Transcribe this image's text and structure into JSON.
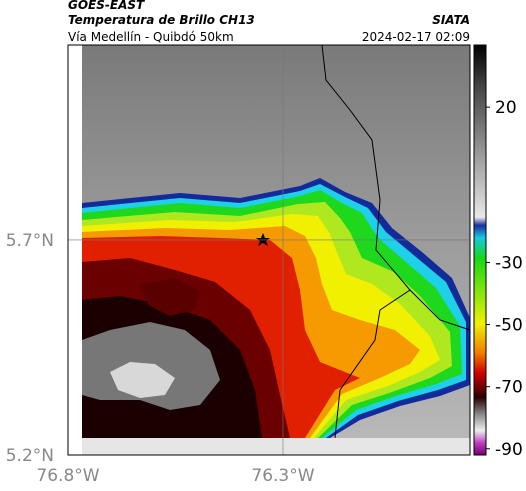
{
  "header": {
    "product": "GOES-EAST",
    "title": "Temperatura de Brillo CH13",
    "source": "SIATA",
    "region": "Vía Medellín - Quibdó 50km",
    "datetime": "2024-02-17 02:09"
  },
  "map": {
    "xlim": [
      -76.8,
      -75.865
    ],
    "ylim": [
      5.2,
      6.153
    ],
    "xticks": [
      {
        "value": -76.8,
        "label": "76.8°W"
      },
      {
        "value": -76.3,
        "label": "76.3°W"
      }
    ],
    "yticks": [
      {
        "value": 5.2,
        "label": "5.2°N"
      },
      {
        "value": 5.7,
        "label": "5.7°N"
      }
    ],
    "grid": true
  },
  "colorbar": {
    "lim": [
      40,
      -92
    ],
    "ticks": [
      20,
      -30,
      -50,
      -70,
      -90
    ]
  }
}
